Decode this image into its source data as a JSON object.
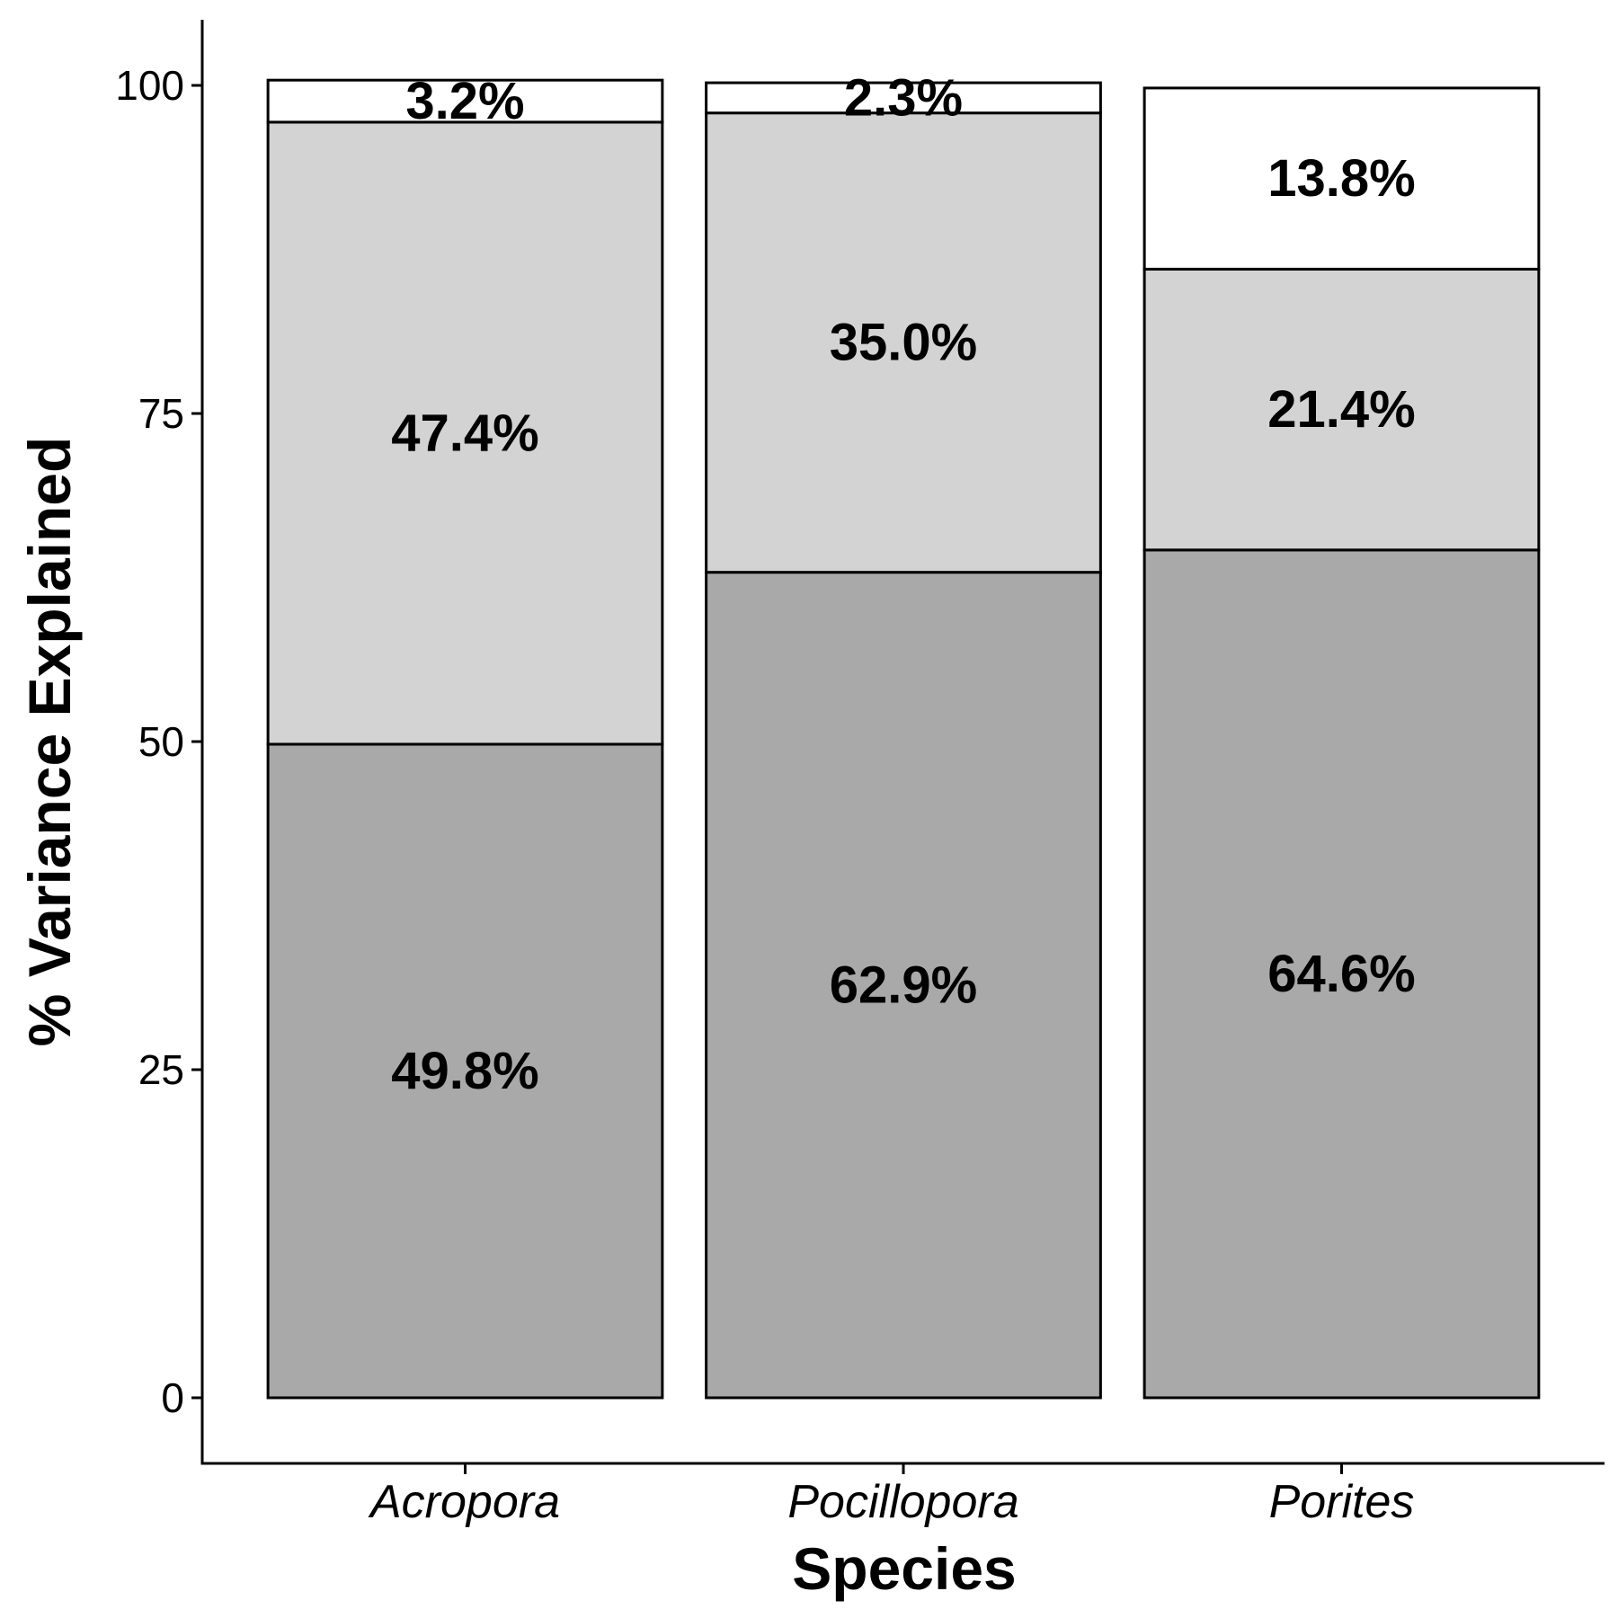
{
  "chart_data": {
    "type": "bar",
    "stacked": true,
    "categories": [
      "Acropora",
      "Pocillopora",
      "Porites"
    ],
    "series": [
      {
        "values": [
          49.8,
          62.9,
          64.6
        ],
        "labels": [
          "49.8%",
          "62.9%",
          "64.6%"
        ],
        "color": "#a9a9a9"
      },
      {
        "values": [
          47.4,
          35.0,
          21.4
        ],
        "labels": [
          "47.4%",
          "35.0%",
          "21.4%"
        ],
        "color": "#d3d3d3"
      },
      {
        "values": [
          3.2,
          2.3,
          13.8
        ],
        "labels": [
          "3.2%",
          "2.3%",
          "13.8%"
        ],
        "color": "#ffffff"
      }
    ],
    "xlabel": "Species",
    "ylabel": "% Variance Explained",
    "ylim": [
      -5,
      105
    ],
    "yticks": [
      0,
      25,
      50,
      75,
      100
    ],
    "ytick_labels": [
      "0",
      "25",
      "50",
      "75",
      "100"
    ],
    "grid": false,
    "legend": false
  }
}
